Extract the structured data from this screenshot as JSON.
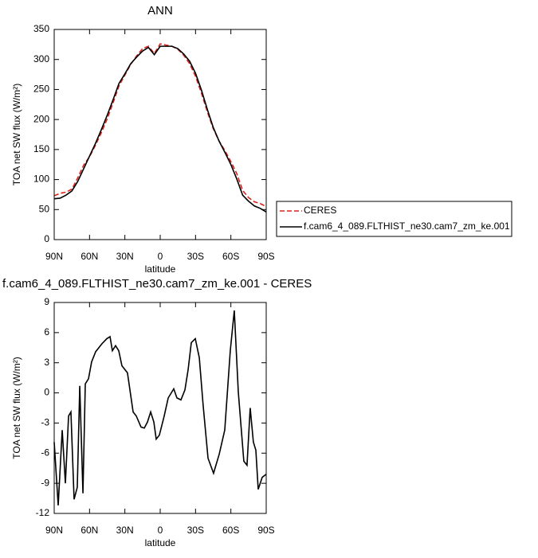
{
  "chart_data": [
    {
      "type": "line",
      "title": "ANN",
      "x_label": "latitude",
      "y_label": "TOA net SW flux (W/m²)",
      "xlim": [
        90,
        -90
      ],
      "xticks": [
        {
          "value": 90,
          "label": "90N"
        },
        {
          "value": 60,
          "label": "60N"
        },
        {
          "value": 30,
          "label": "30N"
        },
        0,
        {
          "value": -30,
          "label": "30S"
        },
        {
          "value": -60,
          "label": "60S"
        },
        {
          "value": -90,
          "label": "90S"
        }
      ],
      "ylim": [
        0,
        350
      ],
      "yticks": [
        0,
        50,
        100,
        150,
        200,
        250,
        300,
        350
      ],
      "legend": "right",
      "x": [
        90,
        85,
        80,
        75,
        70,
        65,
        60,
        55,
        50,
        45,
        40,
        35,
        30,
        25,
        20,
        15,
        10,
        5,
        0,
        -5,
        -10,
        -15,
        -20,
        -25,
        -30,
        -35,
        -40,
        -45,
        -50,
        -55,
        -60,
        -65,
        -70,
        -75,
        -80,
        -85,
        -90
      ],
      "series": [
        {
          "name": "CERES",
          "color": "#e0201b",
          "dashed": true,
          "values": [
            73,
            77,
            79,
            84,
            103,
            124,
            138,
            157,
            178,
            201,
            228,
            256,
            274,
            292,
            306,
            318,
            322,
            310,
            326,
            324,
            322,
            317,
            307,
            293,
            272,
            244,
            213,
            185,
            164,
            148,
            130,
            110,
            82,
            70,
            63,
            60,
            55
          ]
        },
        {
          "name": "f.cam6_4_089.FLTHIST_ne30.cam7_zm_ke.001",
          "color": "#000000",
          "dashed": false,
          "values": [
            68,
            69,
            74,
            81,
            97,
            118,
            139,
            160,
            183,
            207,
            233,
            260,
            276,
            293,
            304,
            314,
            320,
            308,
            322,
            322,
            322,
            318,
            309,
            297,
            277,
            249,
            217,
            187,
            164,
            145,
            125,
            101,
            74,
            64,
            56,
            52,
            46
          ]
        }
      ]
    },
    {
      "type": "line",
      "title": "f.cam6_4_089.FLTHIST_ne30.cam7_zm_ke.001 - CERES",
      "x_label": "latitude",
      "y_label": "TOA net SW flux (W/m²)",
      "xlim": [
        90,
        -90
      ],
      "xticks": [
        {
          "value": 90,
          "label": "90N"
        },
        {
          "value": 60,
          "label": "60N"
        },
        {
          "value": 30,
          "label": "30N"
        },
        0,
        {
          "value": -30,
          "label": "30S"
        },
        {
          "value": -60,
          "label": "60S"
        },
        {
          "value": -90,
          "label": "90S"
        }
      ],
      "ylim": [
        -12,
        9
      ],
      "yticks": [
        -12,
        -9,
        -6,
        -3,
        0,
        3,
        6,
        9
      ],
      "x": [
        90,
        86.6,
        83.2,
        80.5,
        77.8,
        75.8,
        73.1,
        70.4,
        68.3,
        65.6,
        63.6,
        60.9,
        58.2,
        54.8,
        49.4,
        45.3,
        42.6,
        40.6,
        37.9,
        35.2,
        32.5,
        27.8,
        23.0,
        20.3,
        16.3,
        13.5,
        10.8,
        8.1,
        5.4,
        3.4,
        0.7,
        -3.4,
        -6.8,
        -11.5,
        -14.2,
        -17.6,
        -21,
        -23.7,
        -26.4,
        -29.8,
        -33.2,
        -36.5,
        -40.6,
        -45.3,
        -50.1,
        -54.8,
        -59.5,
        -62.9,
        -66.3,
        -71,
        -73.7,
        -76.4,
        -79.1,
        -81.2,
        -83.2,
        -86.6,
        -90
      ],
      "series": [
        {
          "color": "#000000",
          "dashed": false,
          "values": [
            -4.9,
            -11.2,
            -3.7,
            -9,
            -2.3,
            -1.9,
            -10.6,
            -9.4,
            0.7,
            -10,
            0.9,
            1.4,
            3.1,
            4.1,
            4.9,
            5.4,
            5.6,
            4.2,
            4.7,
            4.2,
            2.7,
            2.0,
            -1.9,
            -2.3,
            -3.4,
            -3.5,
            -2.9,
            -1.9,
            -2.9,
            -4.6,
            -4.2,
            -2.3,
            -0.5,
            0.4,
            -0.5,
            -0.7,
            0.3,
            2.3,
            5.0,
            5.4,
            3.5,
            -1.3,
            -6.5,
            -8.0,
            -6.1,
            -3.7,
            4.2,
            8.2,
            0.1,
            -6.8,
            -7.2,
            -1.5,
            -4.9,
            -5.7,
            -9.6,
            -8.4,
            -8.1
          ]
        }
      ]
    }
  ]
}
